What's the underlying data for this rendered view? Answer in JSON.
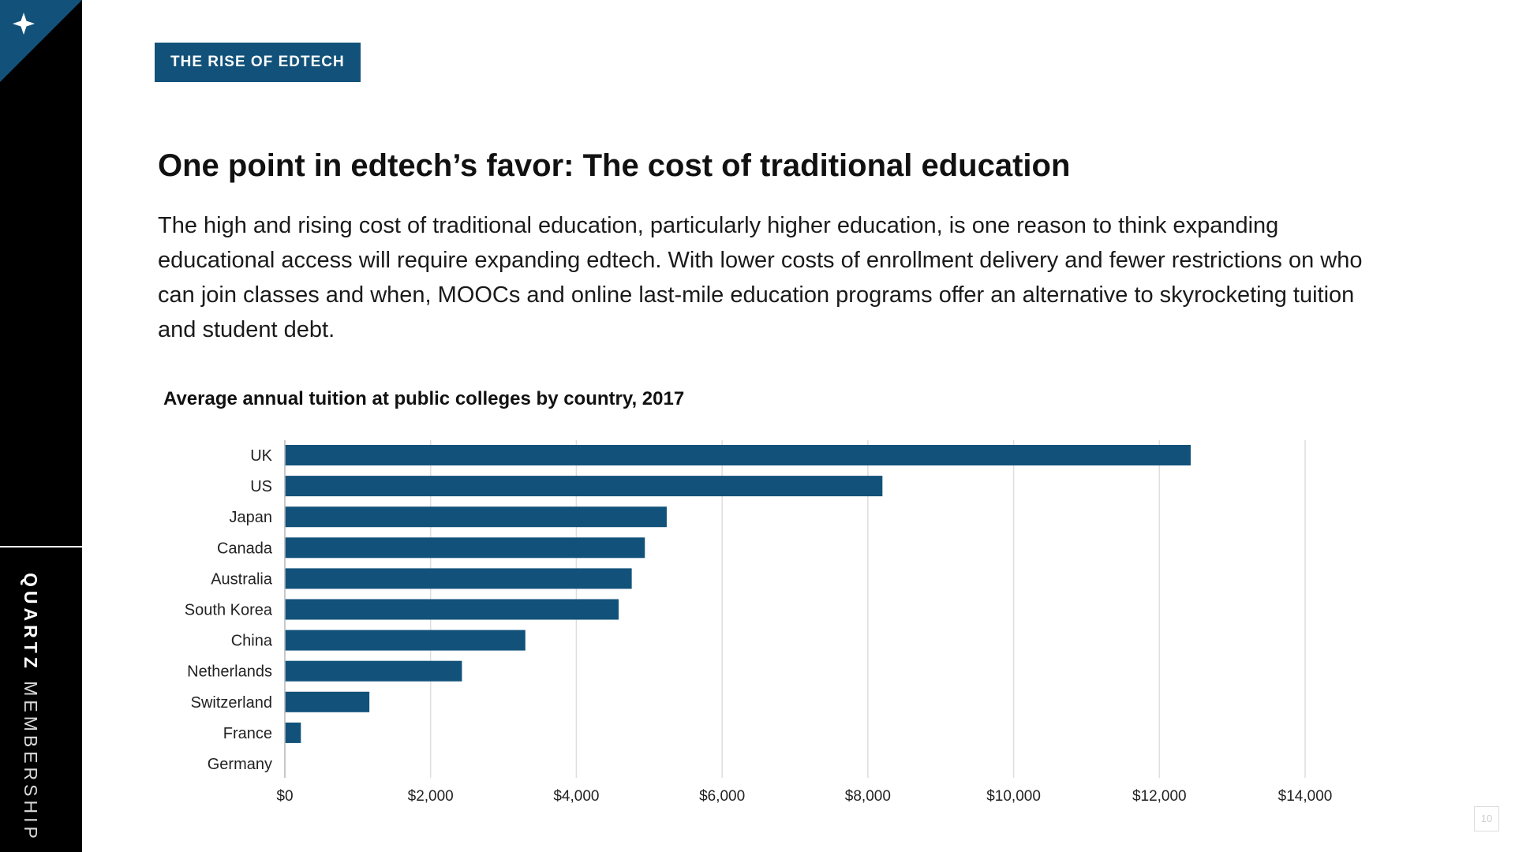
{
  "sidebar": {
    "brand_bold": "QUARTZ",
    "brand_light": "MEMBERSHIP"
  },
  "header": {
    "tag": "THE RISE OF EDTECH"
  },
  "main": {
    "title": "One point in edtech’s favor: The cost of traditional education",
    "body": "The high and rising cost of traditional education, particularly higher education, is one reason to think expanding educational access will require expanding edtech. With lower costs of enrollment delivery and fewer restrictions on who can join classes and when, MOOCs and online last-mile education programs offer an alternative to skyrocketing tuition and student debt."
  },
  "page_number": "10",
  "colors": {
    "bar": "#12527a",
    "tag": "#12527a",
    "grid": "#dedede",
    "sidebar": "#000000"
  },
  "chart_data": {
    "type": "bar",
    "orientation": "horizontal",
    "title": "Average annual tuition at public colleges by country, 2017",
    "categories": [
      "UK",
      "US",
      "Japan",
      "Canada",
      "Australia",
      "South Korea",
      "China",
      "Netherlands",
      "Switzerland",
      "France",
      "Germany"
    ],
    "values": [
      12430,
      8200,
      5240,
      4940,
      4760,
      4580,
      3300,
      2430,
      1160,
      220,
      0
    ],
    "xlim": [
      0,
      14000
    ],
    "xticks": [
      0,
      2000,
      4000,
      6000,
      8000,
      10000,
      12000,
      14000
    ],
    "xtick_labels": [
      "$0",
      "$2,000",
      "$4,000",
      "$6,000",
      "$8,000",
      "$10,000",
      "$12,000",
      "$14,000"
    ],
    "grid": true,
    "legend": "none"
  }
}
